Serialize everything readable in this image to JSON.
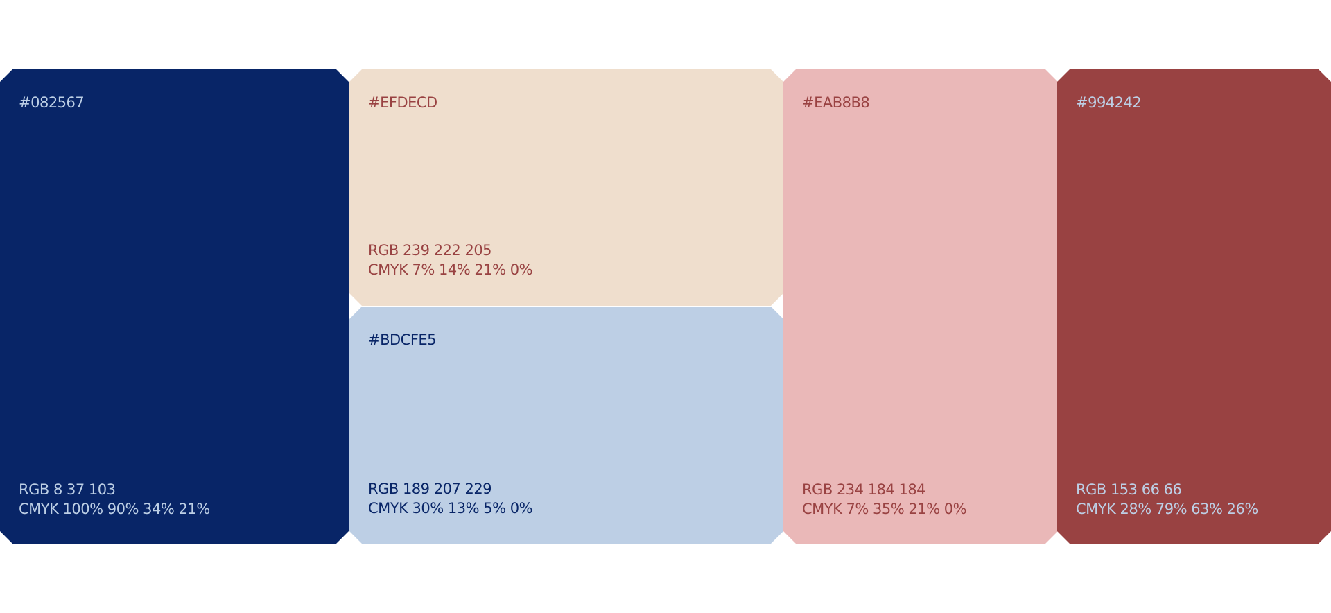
{
  "swatches": [
    {
      "hex": "#082567",
      "rgb": "RGB 8 37 103",
      "cmyk": "CMYK 100% 90% 34% 21%"
    },
    {
      "hex": "#EFDECD",
      "rgb": "RGB 239 222 205",
      "cmyk": "CMYK 7% 14% 21% 0%"
    },
    {
      "hex": "#BDCFE5",
      "rgb": "RGB 189 207 229",
      "cmyk": "CMYK 30% 13% 5% 0%"
    },
    {
      "hex": "#EAB8B8",
      "rgb": "RGB 234 184 184",
      "cmyk": "CMYK 7% 35% 21% 0%"
    },
    {
      "hex": "#994242",
      "rgb": "RGB 153 66 66",
      "cmyk": "CMYK 28% 79% 63% 26%"
    }
  ]
}
